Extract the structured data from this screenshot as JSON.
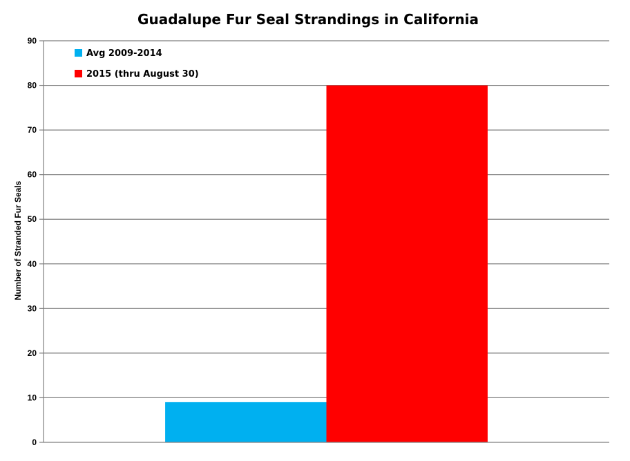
{
  "chart_data": {
    "type": "bar",
    "title": "Guadalupe Fur Seal Strandings in California",
    "xlabel": "",
    "ylabel": "Number of Stranded Fur Seals",
    "ylim": [
      0,
      90
    ],
    "yticks": [
      0,
      10,
      20,
      30,
      40,
      50,
      60,
      70,
      80,
      90
    ],
    "grid": true,
    "legend_position": "top-left",
    "categories": [
      ""
    ],
    "series": [
      {
        "name": "Avg 2009-2014",
        "values": [
          9
        ],
        "color": "#00B0F0"
      },
      {
        "name": "2015 (thru August 30)",
        "values": [
          80
        ],
        "color": "#FF0000"
      }
    ]
  }
}
